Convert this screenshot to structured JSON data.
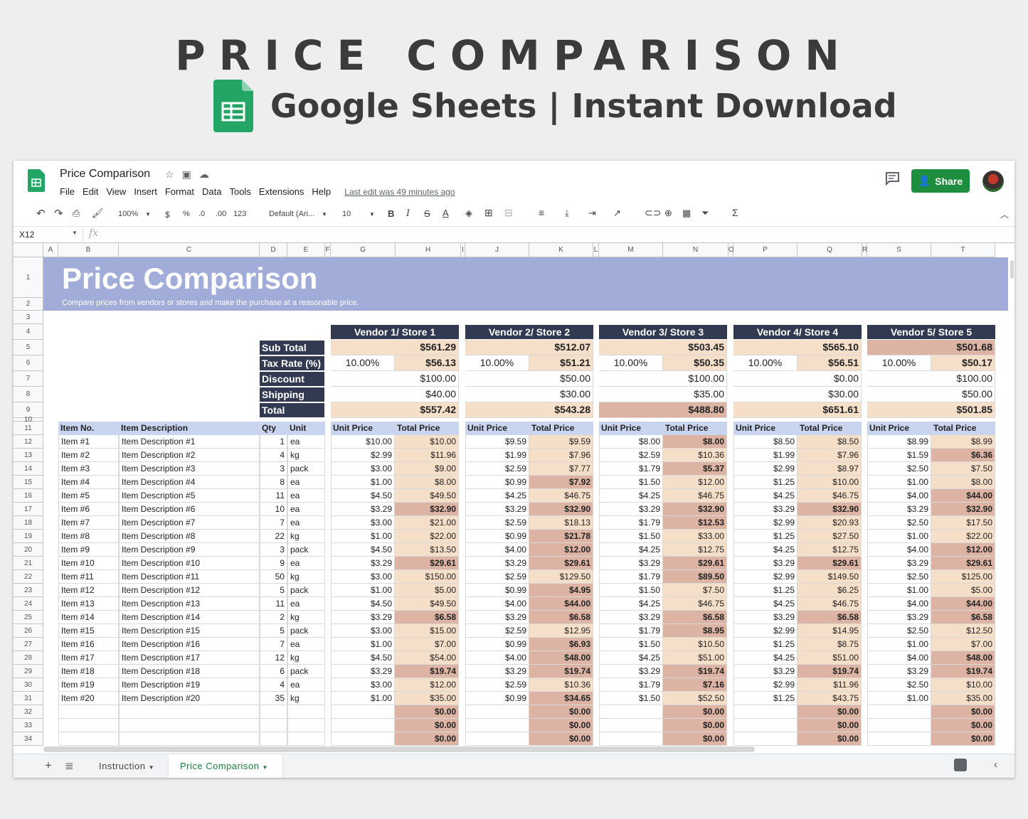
{
  "banner": {
    "title": "PRICE COMPARISON",
    "subtitle": "Google Sheets | Instant Download"
  },
  "app": {
    "doc_title": "Price Comparison",
    "menus": [
      "File",
      "Edit",
      "View",
      "Insert",
      "Format",
      "Data",
      "Tools",
      "Extensions",
      "Help"
    ],
    "last_edit": "Last edit was 49 minutes ago",
    "share_label": "Share"
  },
  "toolbar": {
    "zoom": "100%",
    "currency": "$",
    "percent": "%",
    "dec_less": ".0",
    "dec_more": ".00",
    "more_formats": "123",
    "font": "Default (Ari...",
    "font_size": "10",
    "bold": "B",
    "italic": "I",
    "strike": "S",
    "text_color": "A",
    "sum": "Σ"
  },
  "formula_bar": {
    "cell_ref": "X12",
    "fx": "fx"
  },
  "columns": [
    "A",
    "B",
    "C",
    "D",
    "E",
    "F",
    "G",
    "H",
    "I",
    "J",
    "K",
    "L",
    "M",
    "N",
    "O",
    "P",
    "Q",
    "R",
    "S",
    "T"
  ],
  "rows": [
    "1",
    "2",
    "3",
    "4",
    "5",
    "6",
    "7",
    "8",
    "9",
    "10",
    "11",
    "12",
    "13",
    "14",
    "15",
    "16",
    "17",
    "18",
    "19",
    "20",
    "21",
    "22",
    "23",
    "24",
    "25",
    "26",
    "27",
    "28",
    "29",
    "30",
    "31",
    "32",
    "33",
    "34"
  ],
  "sheet": {
    "title": "Price Comparison",
    "subtitle": "Compare prices from vendors or stores and make the purchase at a reasonable price.",
    "summary_labels": [
      "Sub Total",
      "Tax Rate (%)",
      "Discount",
      "Shipping",
      "Total"
    ],
    "vendors": [
      {
        "name": "Vendor 1/ Store 1",
        "subtotal": "$561.29",
        "tax_rate": "10.00%",
        "tax": "$56.13",
        "discount": "$100.00",
        "shipping": "$40.00",
        "total": "$557.42",
        "sub_hl": false,
        "total_hl": false
      },
      {
        "name": "Vendor 2/ Store 2",
        "subtotal": "$512.07",
        "tax_rate": "10.00%",
        "tax": "$51.21",
        "discount": "$50.00",
        "shipping": "$30.00",
        "total": "$543.28",
        "sub_hl": false,
        "total_hl": false
      },
      {
        "name": "Vendor 3/ Store 3",
        "subtotal": "$503.45",
        "tax_rate": "10.00%",
        "tax": "$50.35",
        "discount": "$100.00",
        "shipping": "$35.00",
        "total": "$488.80",
        "sub_hl": false,
        "total_hl": true
      },
      {
        "name": "Vendor 4/ Store 4",
        "subtotal": "$565.10",
        "tax_rate": "10.00%",
        "tax": "$56.51",
        "discount": "$0.00",
        "shipping": "$30.00",
        "total": "$651.61",
        "sub_hl": false,
        "total_hl": false
      },
      {
        "name": "Vendor 5/ Store 5",
        "subtotal": "$501.68",
        "tax_rate": "10.00%",
        "tax": "$50.17",
        "discount": "$100.00",
        "shipping": "$50.00",
        "total": "$501.85",
        "sub_hl": true,
        "total_hl": false
      }
    ],
    "item_headers": {
      "no": "Item No.",
      "desc": "Item Description",
      "qty": "Qty",
      "unit": "Unit",
      "unit_price": "Unit Price",
      "total_price": "Total Price"
    },
    "items": [
      {
        "no": "Item #1",
        "desc": "Item Description #1",
        "qty": "1",
        "unit": "ea"
      },
      {
        "no": "Item #2",
        "desc": "Item Description #2",
        "qty": "4",
        "unit": "kg"
      },
      {
        "no": "Item #3",
        "desc": "Item Description #3",
        "qty": "3",
        "unit": "pack"
      },
      {
        "no": "Item #4",
        "desc": "Item Description #4",
        "qty": "8",
        "unit": "ea"
      },
      {
        "no": "Item #5",
        "desc": "Item Description #5",
        "qty": "11",
        "unit": "ea"
      },
      {
        "no": "Item #6",
        "desc": "Item Description #6",
        "qty": "10",
        "unit": "ea"
      },
      {
        "no": "Item #7",
        "desc": "Item Description #7",
        "qty": "7",
        "unit": "ea"
      },
      {
        "no": "Item #8",
        "desc": "Item Description #8",
        "qty": "22",
        "unit": "kg"
      },
      {
        "no": "Item #9",
        "desc": "Item Description #9",
        "qty": "3",
        "unit": "pack"
      },
      {
        "no": "Item #10",
        "desc": "Item Description #10",
        "qty": "9",
        "unit": "ea"
      },
      {
        "no": "Item #11",
        "desc": "Item Description #11",
        "qty": "50",
        "unit": "kg"
      },
      {
        "no": "Item #12",
        "desc": "Item Description #12",
        "qty": "5",
        "unit": "pack"
      },
      {
        "no": "Item #13",
        "desc": "Item Description #13",
        "qty": "11",
        "unit": "ea"
      },
      {
        "no": "Item #14",
        "desc": "Item Description #14",
        "qty": "2",
        "unit": "kg"
      },
      {
        "no": "Item #15",
        "desc": "Item Description #15",
        "qty": "5",
        "unit": "pack"
      },
      {
        "no": "Item #16",
        "desc": "Item Description #16",
        "qty": "7",
        "unit": "ea"
      },
      {
        "no": "Item #17",
        "desc": "Item Description #17",
        "qty": "12",
        "unit": "kg"
      },
      {
        "no": "Item #18",
        "desc": "Item Description #18",
        "qty": "6",
        "unit": "pack"
      },
      {
        "no": "Item #19",
        "desc": "Item Description #19",
        "qty": "4",
        "unit": "ea"
      },
      {
        "no": "Item #20",
        "desc": "Item Description #20",
        "qty": "35",
        "unit": "kg"
      }
    ],
    "prices": [
      [
        [
          "$10.00",
          "$10.00",
          0
        ],
        [
          "$9.59",
          "$9.59",
          0
        ],
        [
          "$8.00",
          "$8.00",
          1
        ],
        [
          "$8.50",
          "$8.50",
          0
        ],
        [
          "$8.99",
          "$8.99",
          0
        ]
      ],
      [
        [
          "$2.99",
          "$11.96",
          0
        ],
        [
          "$1.99",
          "$7.96",
          0
        ],
        [
          "$2.59",
          "$10.36",
          0
        ],
        [
          "$1.99",
          "$7.96",
          0
        ],
        [
          "$1.59",
          "$6.36",
          1
        ]
      ],
      [
        [
          "$3.00",
          "$9.00",
          0
        ],
        [
          "$2.59",
          "$7.77",
          0
        ],
        [
          "$1.79",
          "$5.37",
          1
        ],
        [
          "$2.99",
          "$8.97",
          0
        ],
        [
          "$2.50",
          "$7.50",
          0
        ]
      ],
      [
        [
          "$1.00",
          "$8.00",
          0
        ],
        [
          "$0.99",
          "$7.92",
          1
        ],
        [
          "$1.50",
          "$12.00",
          0
        ],
        [
          "$1.25",
          "$10.00",
          0
        ],
        [
          "$1.00",
          "$8.00",
          0
        ]
      ],
      [
        [
          "$4.50",
          "$49.50",
          0
        ],
        [
          "$4.25",
          "$46.75",
          0
        ],
        [
          "$4.25",
          "$46.75",
          0
        ],
        [
          "$4.25",
          "$46.75",
          0
        ],
        [
          "$4.00",
          "$44.00",
          1
        ]
      ],
      [
        [
          "$3.29",
          "$32.90",
          1
        ],
        [
          "$3.29",
          "$32.90",
          1
        ],
        [
          "$3.29",
          "$32.90",
          1
        ],
        [
          "$3.29",
          "$32.90",
          1
        ],
        [
          "$3.29",
          "$32.90",
          1
        ]
      ],
      [
        [
          "$3.00",
          "$21.00",
          0
        ],
        [
          "$2.59",
          "$18.13",
          0
        ],
        [
          "$1.79",
          "$12.53",
          1
        ],
        [
          "$2.99",
          "$20.93",
          0
        ],
        [
          "$2.50",
          "$17.50",
          0
        ]
      ],
      [
        [
          "$1.00",
          "$22.00",
          0
        ],
        [
          "$0.99",
          "$21.78",
          1
        ],
        [
          "$1.50",
          "$33.00",
          0
        ],
        [
          "$1.25",
          "$27.50",
          0
        ],
        [
          "$1.00",
          "$22.00",
          0
        ]
      ],
      [
        [
          "$4.50",
          "$13.50",
          0
        ],
        [
          "$4.00",
          "$12.00",
          1
        ],
        [
          "$4.25",
          "$12.75",
          0
        ],
        [
          "$4.25",
          "$12.75",
          0
        ],
        [
          "$4.00",
          "$12.00",
          1
        ]
      ],
      [
        [
          "$3.29",
          "$29.61",
          1
        ],
        [
          "$3.29",
          "$29.61",
          1
        ],
        [
          "$3.29",
          "$29.61",
          1
        ],
        [
          "$3.29",
          "$29.61",
          1
        ],
        [
          "$3.29",
          "$29.61",
          1
        ]
      ],
      [
        [
          "$3.00",
          "$150.00",
          0
        ],
        [
          "$2.59",
          "$129.50",
          0
        ],
        [
          "$1.79",
          "$89.50",
          1
        ],
        [
          "$2.99",
          "$149.50",
          0
        ],
        [
          "$2.50",
          "$125.00",
          0
        ]
      ],
      [
        [
          "$1.00",
          "$5.00",
          0
        ],
        [
          "$0.99",
          "$4.95",
          1
        ],
        [
          "$1.50",
          "$7.50",
          0
        ],
        [
          "$1.25",
          "$6.25",
          0
        ],
        [
          "$1.00",
          "$5.00",
          0
        ]
      ],
      [
        [
          "$4.50",
          "$49.50",
          0
        ],
        [
          "$4.00",
          "$44.00",
          1
        ],
        [
          "$4.25",
          "$46.75",
          0
        ],
        [
          "$4.25",
          "$46.75",
          0
        ],
        [
          "$4.00",
          "$44.00",
          1
        ]
      ],
      [
        [
          "$3.29",
          "$6.58",
          1
        ],
        [
          "$3.29",
          "$6.58",
          1
        ],
        [
          "$3.29",
          "$6.58",
          1
        ],
        [
          "$3.29",
          "$6.58",
          1
        ],
        [
          "$3.29",
          "$6.58",
          1
        ]
      ],
      [
        [
          "$3.00",
          "$15.00",
          0
        ],
        [
          "$2.59",
          "$12.95",
          0
        ],
        [
          "$1.79",
          "$8.95",
          1
        ],
        [
          "$2.99",
          "$14.95",
          0
        ],
        [
          "$2.50",
          "$12.50",
          0
        ]
      ],
      [
        [
          "$1.00",
          "$7.00",
          0
        ],
        [
          "$0.99",
          "$6.93",
          1
        ],
        [
          "$1.50",
          "$10.50",
          0
        ],
        [
          "$1.25",
          "$8.75",
          0
        ],
        [
          "$1.00",
          "$7.00",
          0
        ]
      ],
      [
        [
          "$4.50",
          "$54.00",
          0
        ],
        [
          "$4.00",
          "$48.00",
          1
        ],
        [
          "$4.25",
          "$51.00",
          0
        ],
        [
          "$4.25",
          "$51.00",
          0
        ],
        [
          "$4.00",
          "$48.00",
          1
        ]
      ],
      [
        [
          "$3.29",
          "$19.74",
          1
        ],
        [
          "$3.29",
          "$19.74",
          1
        ],
        [
          "$3.29",
          "$19.74",
          1
        ],
        [
          "$3.29",
          "$19.74",
          1
        ],
        [
          "$3.29",
          "$19.74",
          1
        ]
      ],
      [
        [
          "$3.00",
          "$12.00",
          0
        ],
        [
          "$2.59",
          "$10.36",
          0
        ],
        [
          "$1.79",
          "$7.16",
          1
        ],
        [
          "$2.99",
          "$11.96",
          0
        ],
        [
          "$2.50",
          "$10.00",
          0
        ]
      ],
      [
        [
          "$1.00",
          "$35.00",
          0
        ],
        [
          "$0.99",
          "$34.65",
          1
        ],
        [
          "$1.50",
          "$52.50",
          0
        ],
        [
          "$1.25",
          "$43.75",
          0
        ],
        [
          "$1.00",
          "$35.00",
          0
        ]
      ]
    ],
    "empty_total": "$0.00"
  },
  "tabs": {
    "instruction": "Instruction",
    "active": "Price Comparison"
  },
  "colors": {
    "title_band": "#a1acd8",
    "header_dark": "#323a52",
    "item_header": "#c9d4ef",
    "peach": "#f5dfc9",
    "highlight": "#ddb4a4",
    "share": "#1e8e3e"
  }
}
